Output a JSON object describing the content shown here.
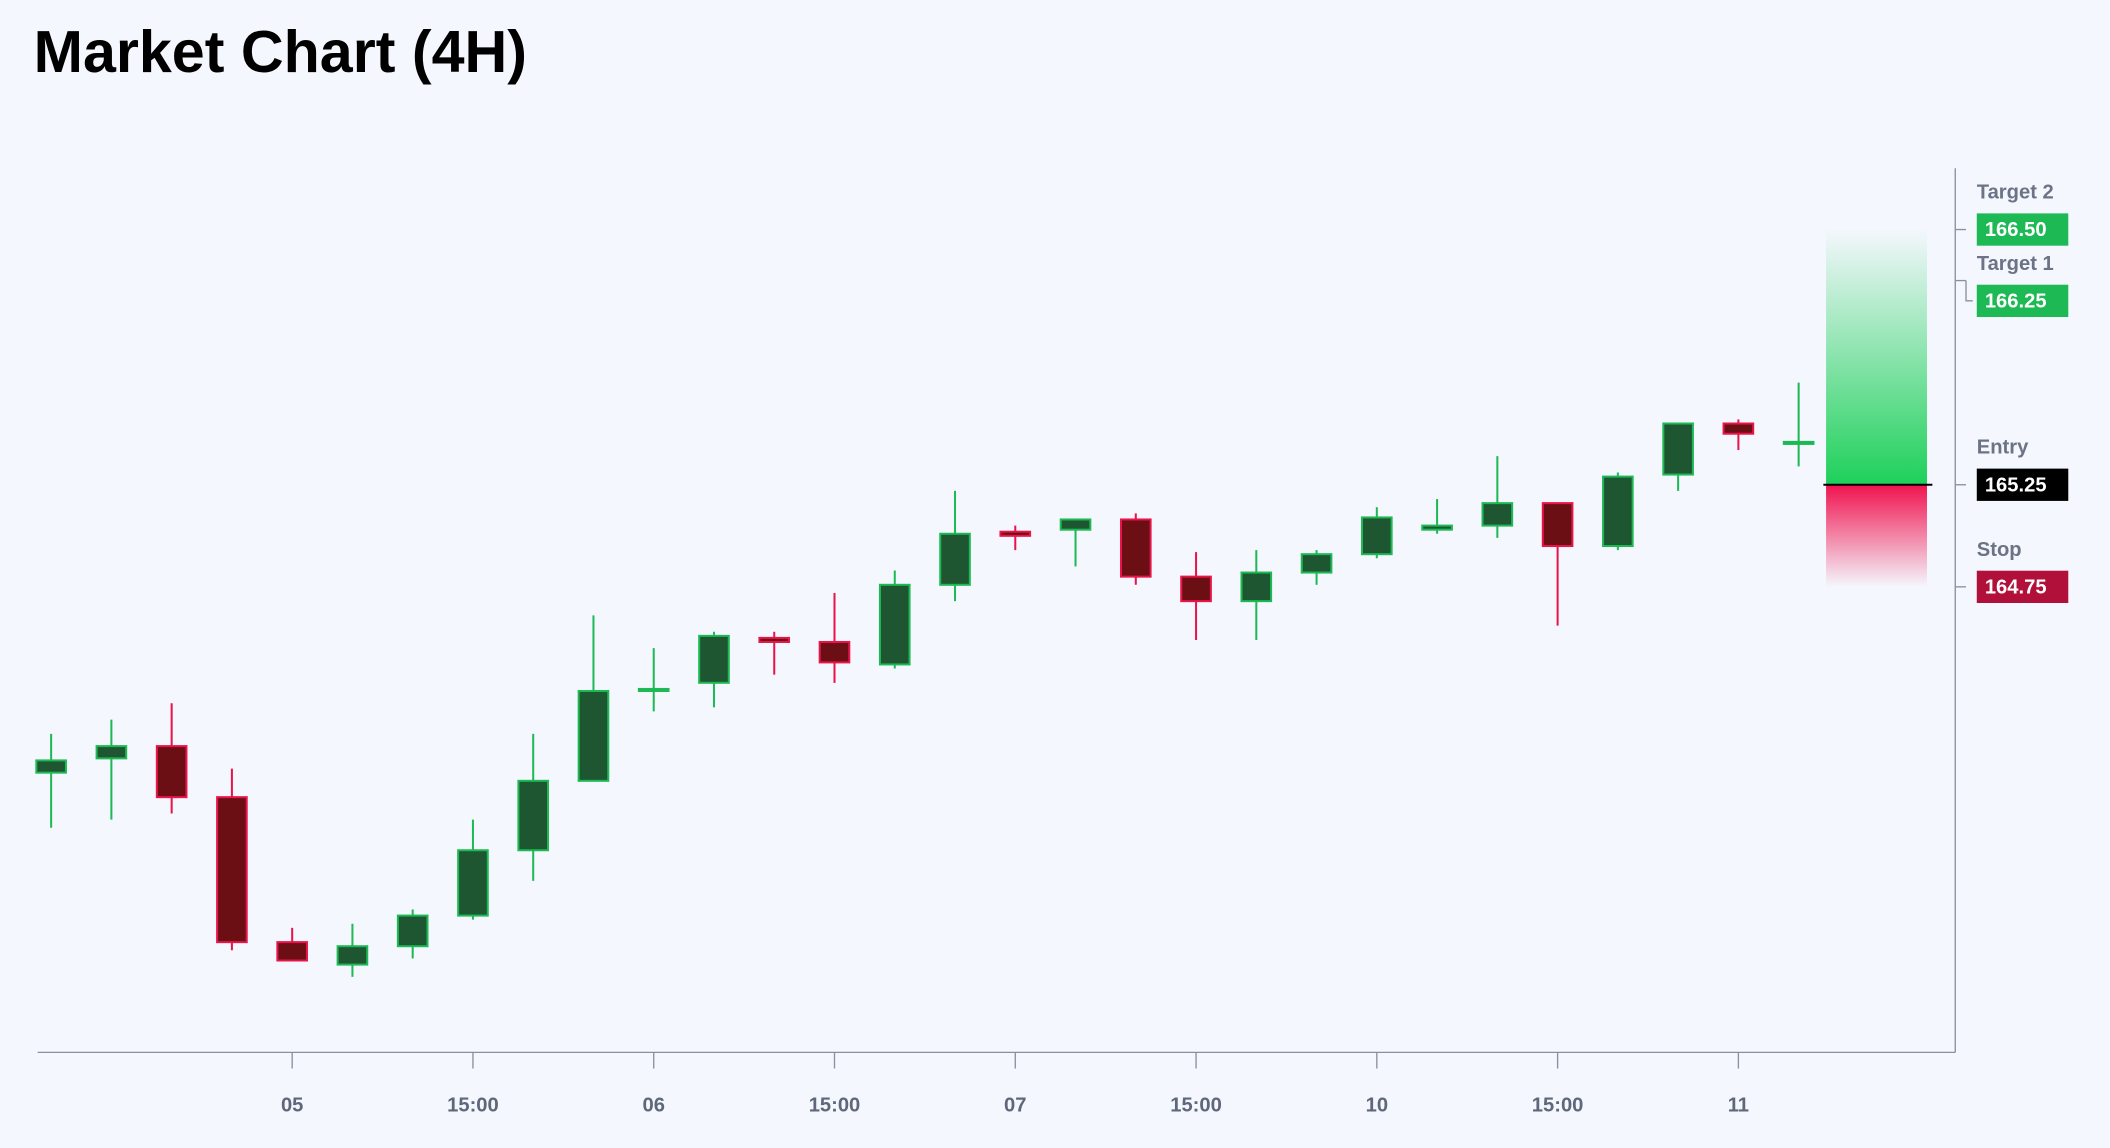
{
  "chart_data": {
    "type": "candlestick",
    "title": "Market Chart (4H)",
    "categories": [
      null,
      null,
      null,
      null,
      "05",
      null,
      null,
      "15:00",
      null,
      null,
      "06",
      null,
      null,
      "15:00",
      null,
      null,
      "07",
      null,
      null,
      "15:00",
      null,
      null,
      "10",
      null,
      null,
      "15:00",
      null,
      null,
      "11",
      null
    ],
    "open": [
      163.84,
      163.91,
      163.97,
      163.72,
      163.01,
      162.9,
      162.99,
      163.14,
      163.46,
      163.8,
      164.24,
      164.28,
      164.5,
      164.48,
      164.37,
      164.76,
      165.02,
      165.03,
      165.08,
      164.8,
      164.68,
      164.82,
      164.91,
      165.03,
      165.05,
      165.16,
      164.95,
      165.3,
      165.55,
      165.45
    ],
    "high": [
      164.03,
      164.1,
      164.18,
      163.86,
      163.08,
      163.1,
      163.17,
      163.61,
      164.03,
      164.61,
      164.45,
      164.53,
      164.53,
      164.72,
      164.83,
      165.22,
      165.05,
      165.08,
      165.11,
      164.92,
      164.93,
      164.93,
      165.14,
      165.18,
      165.39,
      165.16,
      165.31,
      165.55,
      165.57,
      165.75
    ],
    "low": [
      163.57,
      163.61,
      163.64,
      162.97,
      162.92,
      162.84,
      162.93,
      163.12,
      163.31,
      163.8,
      164.14,
      164.16,
      164.32,
      164.28,
      164.35,
      164.68,
      164.93,
      164.85,
      164.76,
      164.49,
      164.49,
      164.76,
      164.89,
      165.01,
      164.99,
      164.56,
      164.93,
      165.22,
      165.42,
      165.34
    ],
    "close": [
      163.9,
      163.97,
      163.72,
      163.01,
      162.92,
      162.99,
      163.14,
      163.46,
      163.8,
      164.24,
      164.25,
      164.51,
      164.48,
      164.38,
      164.76,
      165.01,
      165.0,
      165.08,
      164.8,
      164.68,
      164.82,
      164.91,
      165.09,
      165.05,
      165.16,
      164.95,
      165.29,
      165.55,
      165.5,
      165.46
    ],
    "ylim": [
      162.47,
      166.8
    ],
    "up_color": "#1db954",
    "up_fill": "#1e5631",
    "down_color": "#e8144a",
    "down_fill": "#6b0f14",
    "levels": [
      {
        "name": "Target 2",
        "value": 166.5,
        "label": "166.50",
        "color": "#1db954"
      },
      {
        "name": "Target 1",
        "value": 166.25,
        "label": "166.25",
        "color": "#1db954"
      },
      {
        "name": "Entry",
        "value": 165.25,
        "label": "165.25",
        "color": "#000000"
      },
      {
        "name": "Stop",
        "value": 164.75,
        "label": "164.75",
        "color": "#b0103a"
      }
    ]
  }
}
